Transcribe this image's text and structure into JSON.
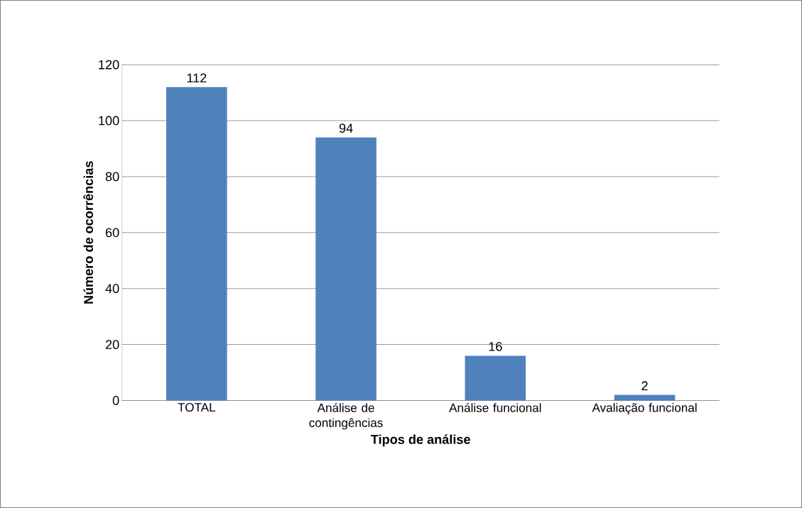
{
  "chart_data": {
    "type": "bar",
    "xlabel": "Tipos de análise",
    "ylabel": "Número de ocorrências",
    "categories": [
      "TOTAL",
      "Análise de contingências",
      "Análise funcional",
      "Avaliação funcional"
    ],
    "values": [
      112,
      94,
      16,
      2
    ],
    "color": "#4f81bd",
    "ylim": [
      0,
      120
    ],
    "yticks": [
      0,
      20,
      40,
      60,
      80,
      100,
      120
    ],
    "grid": "y",
    "data_labels": true
  }
}
